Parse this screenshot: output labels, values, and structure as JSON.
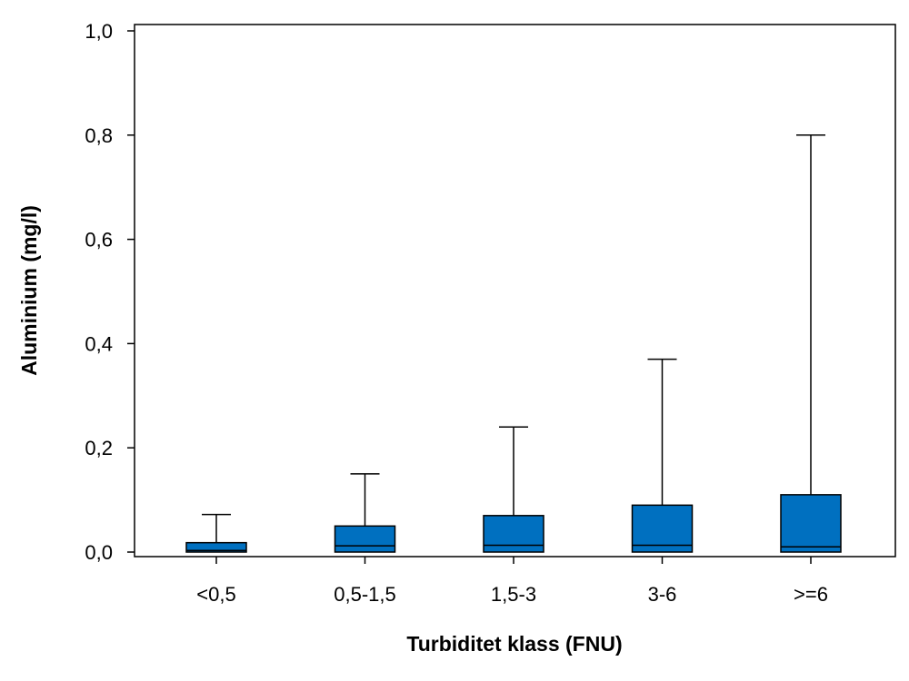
{
  "chart_data": {
    "type": "box",
    "title": "",
    "xlabel": "Turbiditet klass (FNU)",
    "ylabel": "Aluminium (mg/l)",
    "ylim": [
      0.0,
      1.0
    ],
    "yticks": [
      "0,0",
      "0,2",
      "0,4",
      "0,6",
      "0,8",
      "1,0"
    ],
    "ytick_values": [
      0.0,
      0.2,
      0.4,
      0.6,
      0.8,
      1.0
    ],
    "grid": false,
    "box_color": "#0070C0",
    "categories": [
      "<0,5",
      "0,5-1,5",
      "1,5-3",
      "3-6",
      ">=6"
    ],
    "boxes": [
      {
        "category": "<0,5",
        "min": 0.0,
        "q1": 0.0,
        "median": 0.003,
        "q3": 0.018,
        "max": 0.072
      },
      {
        "category": "0,5-1,5",
        "min": 0.0,
        "q1": 0.0,
        "median": 0.012,
        "q3": 0.05,
        "max": 0.15
      },
      {
        "category": "1,5-3",
        "min": 0.0,
        "q1": 0.0,
        "median": 0.013,
        "q3": 0.07,
        "max": 0.24
      },
      {
        "category": "3-6",
        "min": 0.0,
        "q1": 0.0,
        "median": 0.013,
        "q3": 0.09,
        "max": 0.37
      },
      {
        "category": ">=6",
        "min": 0.0,
        "q1": 0.0,
        "median": 0.01,
        "q3": 0.11,
        "max": 0.8
      }
    ]
  }
}
